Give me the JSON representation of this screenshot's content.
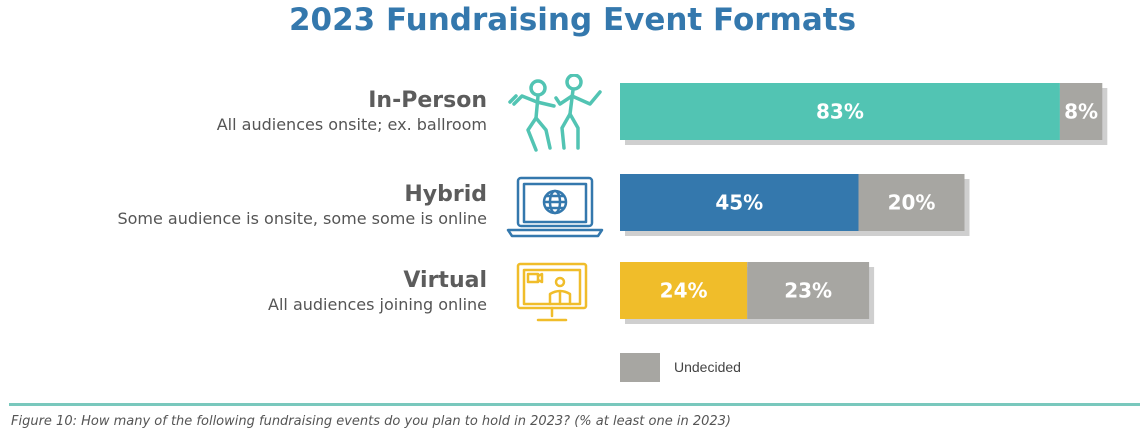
{
  "chart_data": {
    "type": "bar",
    "orientation": "horizontal",
    "stacked": true,
    "title": "2023 Fundraising Event Formats",
    "categories": [
      {
        "name": "In-Person",
        "description": "All audiences onsite; ex. ballroom",
        "icon": "dancing-people-icon"
      },
      {
        "name": "Hybrid",
        "description": "Some audience is onsite, some some is online",
        "icon": "laptop-globe-icon"
      },
      {
        "name": "Virtual",
        "description": "All audiences joining online",
        "icon": "monitor-video-call-icon"
      }
    ],
    "series": [
      {
        "values": [
          83,
          45,
          24
        ],
        "labels": [
          "83%",
          "45%",
          "24%"
        ],
        "colors": [
          "#52c4b3",
          "#3478ad",
          "#f0bd2a"
        ]
      },
      {
        "name": "Undecided",
        "values": [
          8,
          20,
          23
        ],
        "labels": [
          "8%",
          "20%",
          "23%"
        ],
        "color": "#a7a6a2"
      }
    ],
    "xlim": [
      0,
      100
    ],
    "grid": false,
    "legend": {
      "entries": [
        "Undecided"
      ],
      "position": "bottom"
    },
    "caption": "Figure 10: How many of the following fundraising events do you plan to hold in 2023? (% at least one in 2023)"
  }
}
